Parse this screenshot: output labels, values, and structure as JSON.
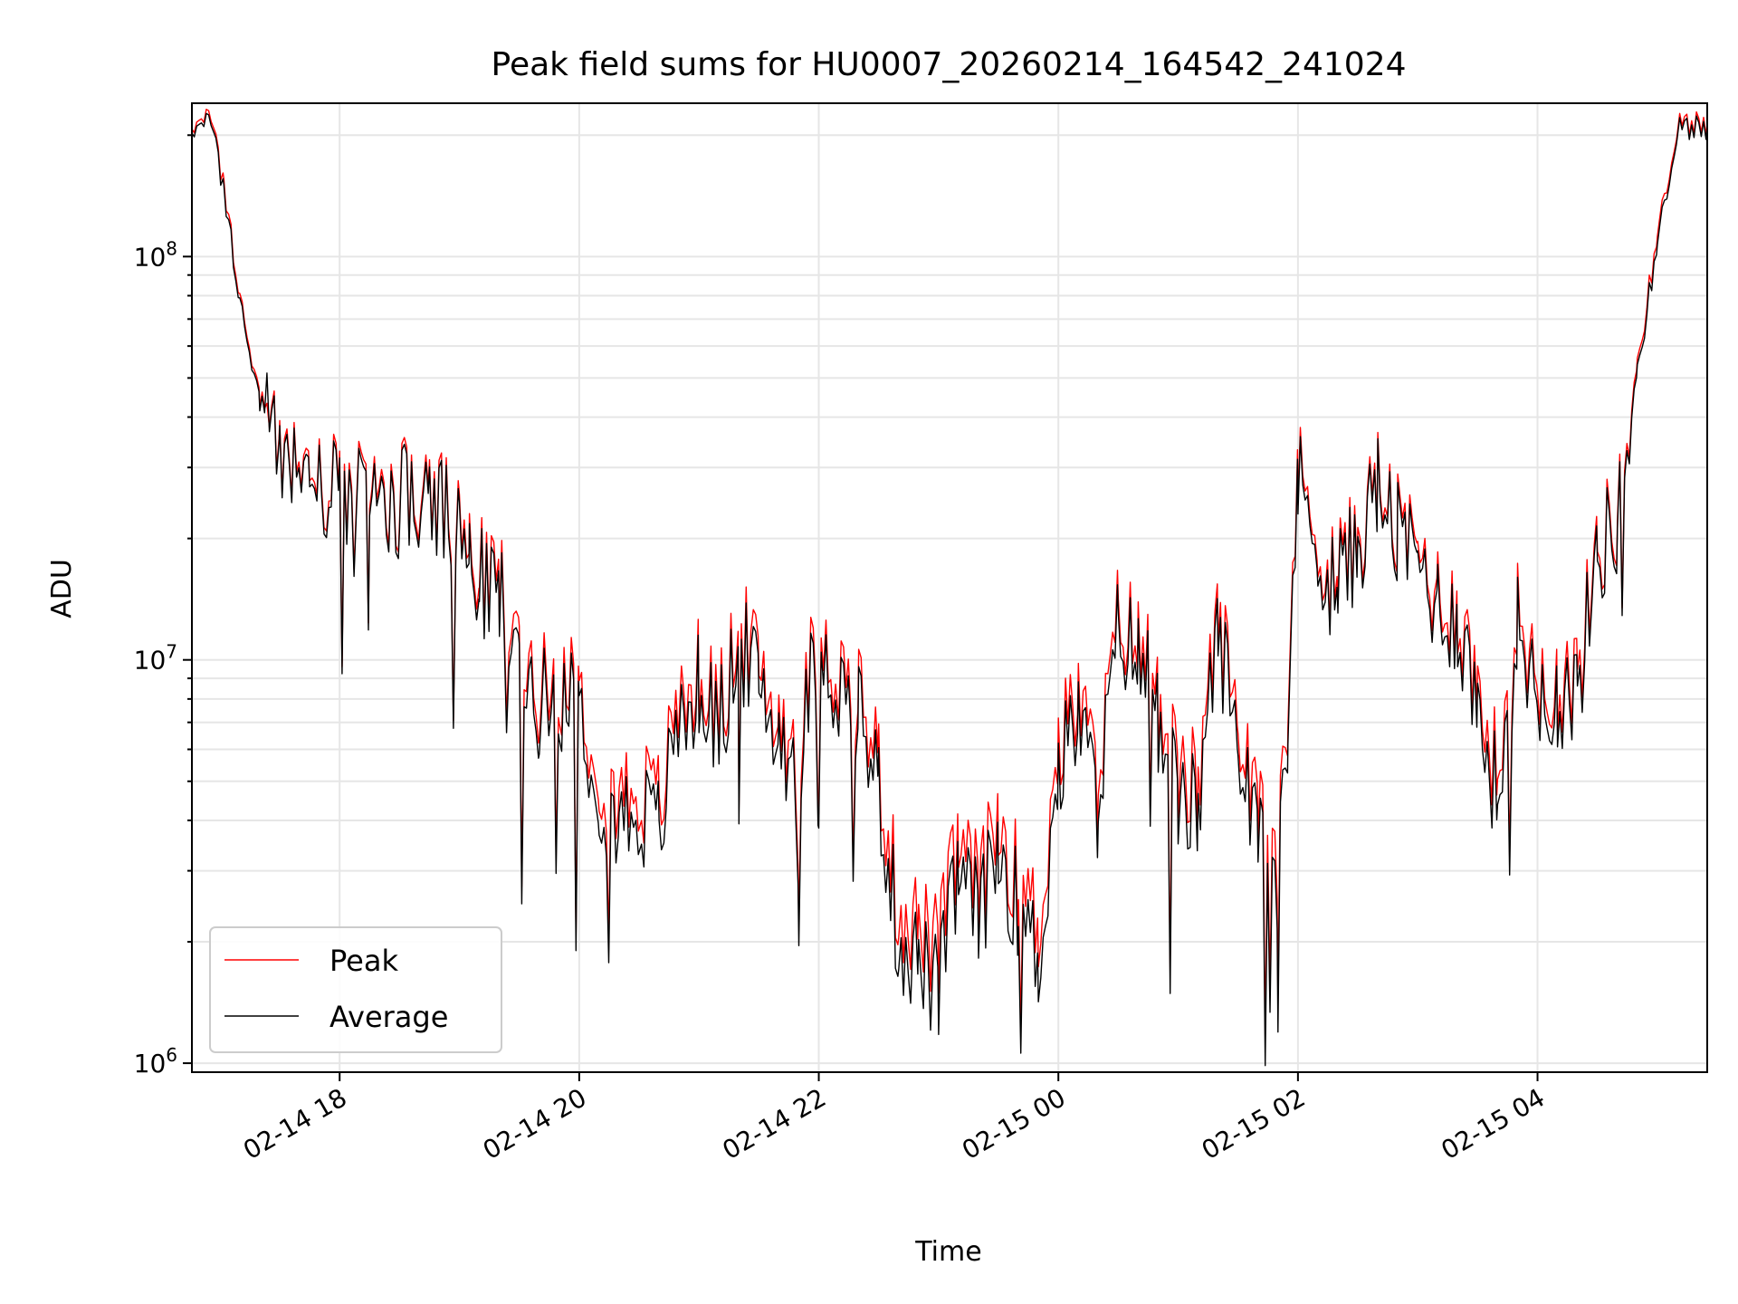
{
  "chart_data": {
    "type": "line",
    "title": "Peak field sums for HU0007_20260214_164542_241024",
    "xlabel": "Time",
    "ylabel": "ADU",
    "yscale": "log",
    "ylim": [
      950000,
      240000000
    ],
    "xlim": [
      "02-14 16:46",
      "02-15 05:25"
    ],
    "grid": true,
    "legend_position": "lower-left",
    "x_ticks": [
      {
        "value": "02-14 18:00",
        "label": "02-14 18"
      },
      {
        "value": "02-14 20:00",
        "label": "02-14 20"
      },
      {
        "value": "02-14 22:00",
        "label": "02-14 22"
      },
      {
        "value": "02-15 00:00",
        "label": "02-15 00"
      },
      {
        "value": "02-15 02:00",
        "label": "02-15 02"
      },
      {
        "value": "02-15 04:00",
        "label": "02-15 04"
      }
    ],
    "y_ticks": [
      {
        "value": 1000000,
        "base": "10",
        "exp": "6"
      },
      {
        "value": 10000000,
        "base": "10",
        "exp": "7"
      },
      {
        "value": 100000000,
        "base": "10",
        "exp": "8"
      }
    ],
    "series": [
      {
        "name": "Peak",
        "color": "#ff0000",
        "x": [
          "02-14 16:46",
          "02-14 16:58",
          "02-14 17:02",
          "02-14 17:10",
          "02-14 17:20",
          "02-14 17:30",
          "02-14 17:45",
          "02-14 18:00",
          "02-14 18:15",
          "02-14 18:30",
          "02-14 18:45",
          "02-14 19:00",
          "02-14 19:05",
          "02-14 19:10",
          "02-14 19:20",
          "02-14 19:30",
          "02-14 19:40",
          "02-14 19:50",
          "02-14 20:00",
          "02-14 20:10",
          "02-14 20:20",
          "02-14 20:30",
          "02-14 20:40",
          "02-14 20:50",
          "02-14 21:00",
          "02-14 21:10",
          "02-14 21:20",
          "02-14 21:30",
          "02-14 21:40",
          "02-14 21:50",
          "02-14 22:00",
          "02-14 22:10",
          "02-14 22:20",
          "02-14 22:30",
          "02-14 22:40",
          "02-14 22:50",
          "02-14 23:00",
          "02-14 23:10",
          "02-14 23:20",
          "02-14 23:30",
          "02-14 23:40",
          "02-14 23:50",
          "02-15 00:00",
          "02-15 00:10",
          "02-15 00:20",
          "02-15 00:30",
          "02-15 00:40",
          "02-15 00:50",
          "02-15 01:00",
          "02-15 01:10",
          "02-15 01:20",
          "02-15 01:30",
          "02-15 01:40",
          "02-15 01:50",
          "02-15 01:55",
          "02-15 02:00",
          "02-15 02:10",
          "02-15 02:20",
          "02-15 02:30",
          "02-15 02:40",
          "02-15 02:50",
          "02-15 03:00",
          "02-15 03:10",
          "02-15 03:20",
          "02-15 03:30",
          "02-15 03:40",
          "02-15 03:50",
          "02-15 04:00",
          "02-15 04:10",
          "02-15 04:20",
          "02-15 04:30",
          "02-15 04:40",
          "02-15 04:50",
          "02-15 05:00",
          "02-15 05:10",
          "02-15 05:25"
        ],
        "values": [
          215000000,
          215000000,
          150000000,
          80000000,
          44000000,
          35000000,
          29000000,
          26000000,
          25500000,
          26500000,
          24500000,
          22500000,
          18000000,
          16500000,
          15500000,
          10500000,
          8500000,
          9000000,
          8500000,
          5500000,
          4600000,
          4800000,
          4400000,
          7800000,
          9300000,
          7500000,
          12000000,
          9500000,
          7200000,
          6000000,
          13000000,
          9000000,
          8500000,
          5500000,
          2400000,
          2200000,
          1900000,
          3500000,
          2700000,
          4000000,
          2800000,
          2200000,
          6000000,
          8000000,
          5000000,
          13000000,
          11000000,
          9000000,
          5000000,
          5000000,
          13000000,
          6800000,
          5000000,
          3800000,
          8800000,
          29500000,
          20000000,
          16500000,
          20000000,
          28000000,
          21000000,
          19000000,
          14500000,
          13500000,
          8500000,
          5200000,
          13000000,
          9200000,
          8800000,
          9000000,
          19500000,
          22500000,
          55000000,
          110000000,
          215000000,
          215000000
        ]
      },
      {
        "name": "Average",
        "color": "#000000",
        "x": [
          "02-14 16:46",
          "02-14 16:58",
          "02-14 17:02",
          "02-14 17:10",
          "02-14 17:20",
          "02-14 17:30",
          "02-14 17:45",
          "02-14 18:00",
          "02-14 18:15",
          "02-14 18:30",
          "02-14 18:45",
          "02-14 19:00",
          "02-14 19:05",
          "02-14 19:10",
          "02-14 19:20",
          "02-14 19:30",
          "02-14 19:40",
          "02-14 19:50",
          "02-14 20:00",
          "02-14 20:10",
          "02-14 20:20",
          "02-14 20:30",
          "02-14 20:40",
          "02-14 20:50",
          "02-14 21:00",
          "02-14 21:10",
          "02-14 21:20",
          "02-14 21:30",
          "02-14 21:40",
          "02-14 21:50",
          "02-14 22:00",
          "02-14 22:10",
          "02-14 22:20",
          "02-14 22:30",
          "02-14 22:40",
          "02-14 22:50",
          "02-14 23:00",
          "02-14 23:10",
          "02-14 23:20",
          "02-14 23:30",
          "02-14 23:40",
          "02-14 23:50",
          "02-15 00:00",
          "02-15 00:10",
          "02-15 00:20",
          "02-15 00:30",
          "02-15 00:40",
          "02-15 00:50",
          "02-15 01:00",
          "02-15 01:10",
          "02-15 01:20",
          "02-15 01:30",
          "02-15 01:40",
          "02-15 01:50",
          "02-15 01:55",
          "02-15 02:00",
          "02-15 02:10",
          "02-15 02:20",
          "02-15 02:30",
          "02-15 02:40",
          "02-15 02:50",
          "02-15 03:00",
          "02-15 03:10",
          "02-15 03:20",
          "02-15 03:30",
          "02-15 03:40",
          "02-15 03:50",
          "02-15 04:00",
          "02-15 04:10",
          "02-15 04:20",
          "02-15 04:30",
          "02-15 04:40",
          "02-15 04:50",
          "02-15 05:00",
          "02-15 05:10",
          "02-15 05:25"
        ],
        "values": [
          210000000,
          210000000,
          145000000,
          78000000,
          43000000,
          34000000,
          28000000,
          25000000,
          24500000,
          25500000,
          23500000,
          21500000,
          17000000,
          15500000,
          14500000,
          9500000,
          7800000,
          8200000,
          7800000,
          4800000,
          4000000,
          4200000,
          3800000,
          7000000,
          8500000,
          6800000,
          11000000,
          8600000,
          6500000,
          5400000,
          12000000,
          8200000,
          7700000,
          4800000,
          2000000,
          1800000,
          1500000,
          3000000,
          2300000,
          3400000,
          2400000,
          1800000,
          5200000,
          7200000,
          4300000,
          12000000,
          10000000,
          8200000,
          4300000,
          4300000,
          12000000,
          6000000,
          4300000,
          3200000,
          8000000,
          28000000,
          19000000,
          15500000,
          19000000,
          27000000,
          20000000,
          18000000,
          13500000,
          12500000,
          7700000,
          4500000,
          12000000,
          8400000,
          8000000,
          8200000,
          18500000,
          21500000,
          53000000,
          105000000,
          210000000,
          210000000
        ]
      }
    ]
  }
}
